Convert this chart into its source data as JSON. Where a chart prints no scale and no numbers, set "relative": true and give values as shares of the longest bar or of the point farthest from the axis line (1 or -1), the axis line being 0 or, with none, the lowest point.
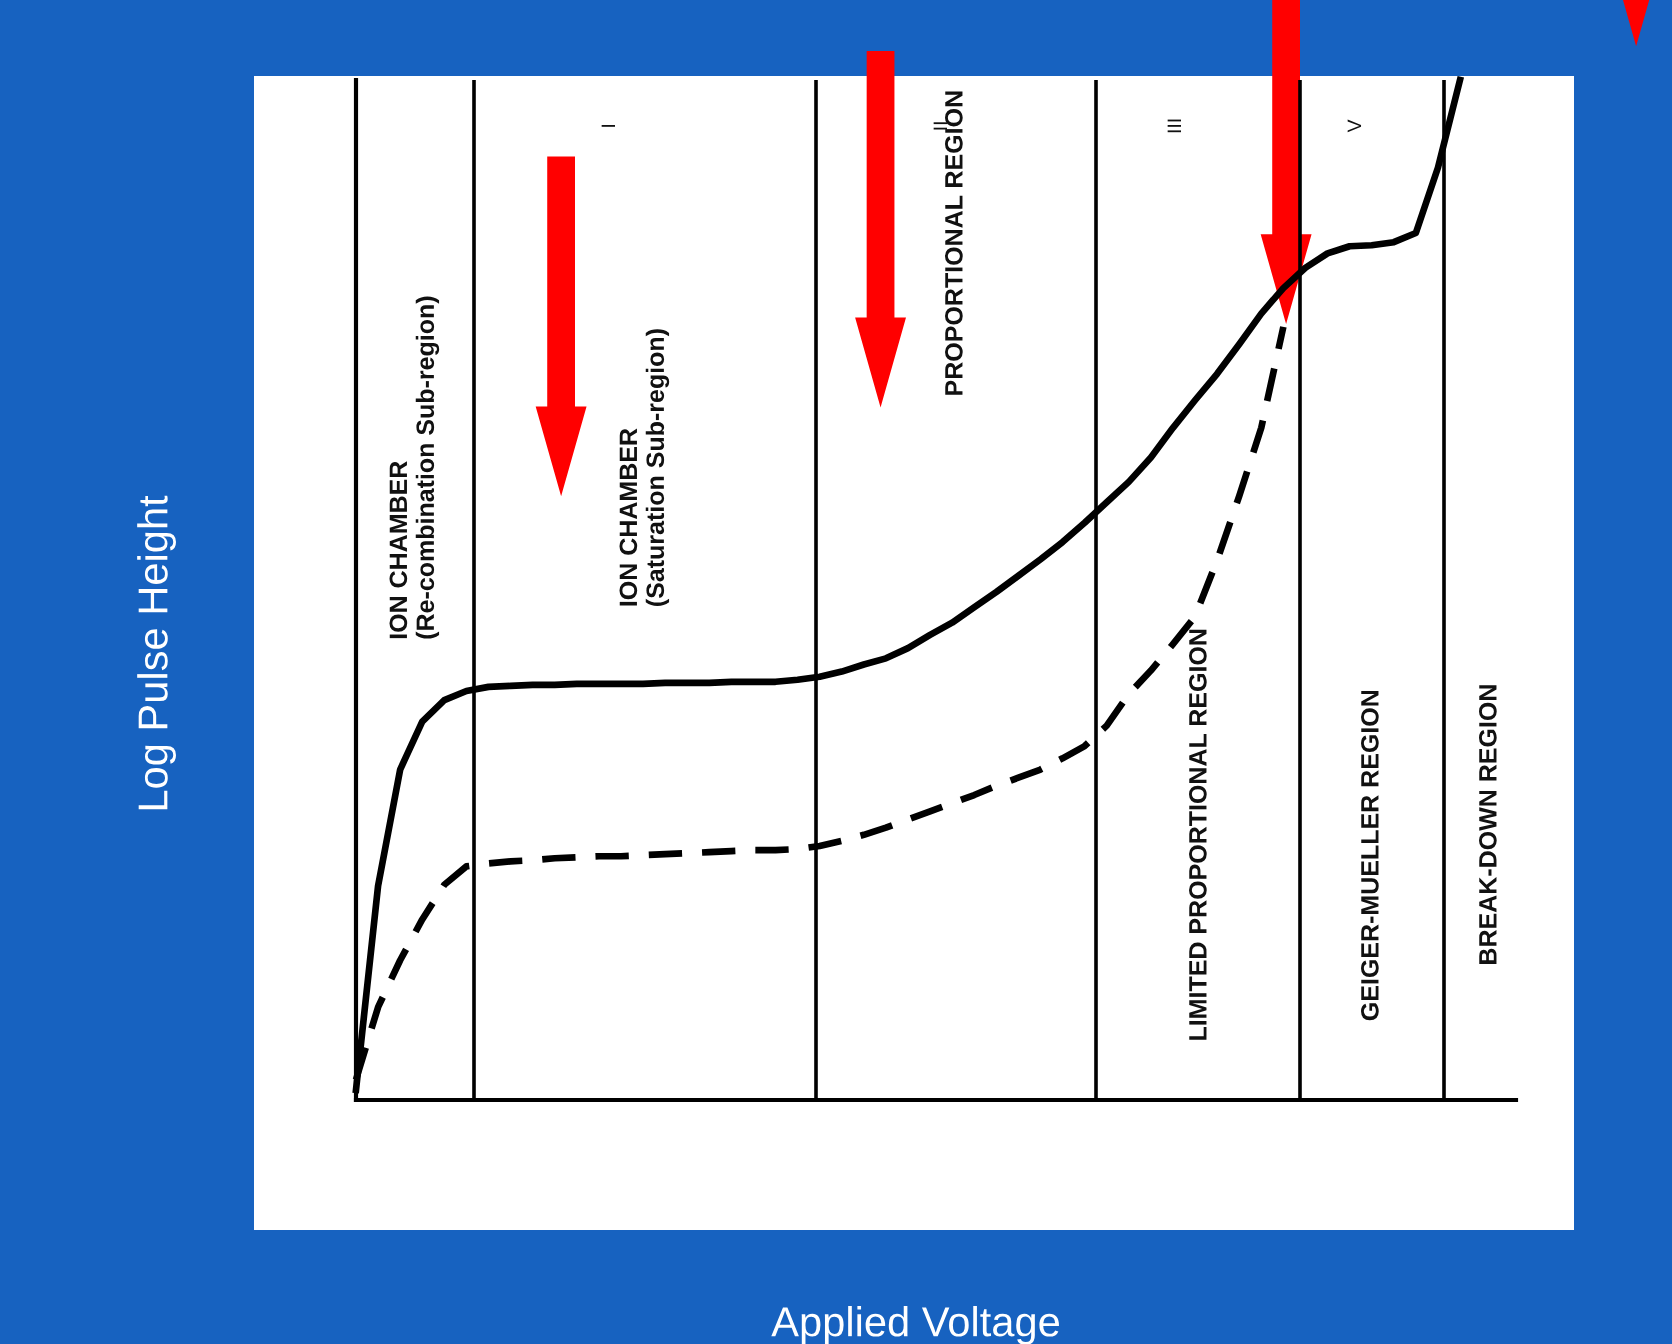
{
  "chart_data": {
    "type": "line",
    "relative": true,
    "xlabel": "Applied Voltage",
    "ylabel": "Log Pulse Height",
    "categories": [
      null,
      null,
      null,
      null,
      null,
      null,
      null,
      null,
      null,
      null,
      null,
      null,
      null,
      null,
      null,
      null,
      null,
      null,
      null,
      null,
      null,
      null,
      null,
      null,
      null,
      null,
      null,
      null,
      null,
      null,
      null,
      null,
      null,
      null,
      null,
      null,
      null,
      null,
      null,
      null,
      null,
      null,
      null,
      null,
      null,
      null,
      null,
      null,
      null,
      null,
      null
    ],
    "series": [
      {
        "color": "#000000",
        "line_style": "solid",
        "values": [
          0.01,
          0.21,
          0.324,
          0.371,
          0.392,
          0.401,
          0.405,
          0.406,
          0.407,
          0.407,
          0.408,
          0.408,
          0.408,
          0.408,
          0.409,
          0.409,
          0.409,
          0.41,
          0.41,
          0.41,
          0.412,
          0.415,
          0.42,
          0.427,
          0.433,
          0.443,
          0.456,
          0.468,
          0.483,
          0.498,
          0.514,
          0.53,
          0.547,
          0.566,
          0.586,
          0.606,
          0.63,
          0.659,
          0.686,
          0.712,
          0.741,
          0.771,
          0.796,
          0.816,
          0.83,
          0.837,
          0.838,
          0.841,
          0.85,
          0.914,
          1.0
        ]
      },
      {
        "color": "#000000",
        "line_style": "dashed",
        "values": [
          0.02,
          0.091,
          0.137,
          0.177,
          0.211,
          0.229,
          0.232,
          0.234,
          0.235,
          0.237,
          0.238,
          0.239,
          0.239,
          0.24,
          0.241,
          0.242,
          0.243,
          0.244,
          0.245,
          0.245,
          0.246,
          0.249,
          0.254,
          0.26,
          0.267,
          0.275,
          0.283,
          0.291,
          0.299,
          0.308,
          0.316,
          0.324,
          0.335,
          0.347,
          0.367,
          0.398,
          0.421,
          0.447,
          0.474,
          0.529,
          0.592,
          0.659,
          0.758,
          null,
          null,
          null,
          null,
          null,
          null,
          null,
          null
        ]
      }
    ],
    "annotations": [
      "ION CHAMBER\n(Re-combination Sub-region)",
      "ION CHAMBER\n(Saturation Sub-region)",
      "PROPORTIONAL REGION",
      "LIMITED PROPORTIONAL REGION",
      "GEIGER-MUELLER REGION",
      "BREAK-DOWN REGION",
      "I",
      "II",
      "III",
      "V"
    ]
  }
}
